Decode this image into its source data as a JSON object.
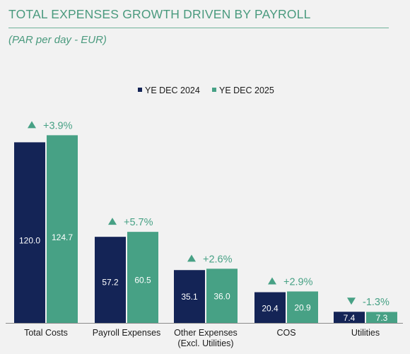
{
  "header": {
    "title": "TOTAL EXPENSES GROWTH DRIVEN BY PAYROLL",
    "subtitle": "(PAR per day - EUR)"
  },
  "colors": {
    "series_2024": "#142456",
    "series_2025": "#47a185",
    "growth_text": "#47a185",
    "axis": "#8c8c8c",
    "title": "#4a9a7e"
  },
  "chart_data": {
    "type": "bar",
    "categories": [
      "Total Costs",
      "Payroll Expenses",
      "Other Expenses\n(Excl. Utilities)",
      "COS",
      "Utilities"
    ],
    "series": [
      {
        "name": "YE DEC 2024",
        "values": [
          120.0,
          57.2,
          35.1,
          20.4,
          7.4
        ]
      },
      {
        "name": "YE DEC 2025",
        "values": [
          124.7,
          60.5,
          36.0,
          20.9,
          7.3
        ]
      }
    ],
    "growth": [
      "+3.9%",
      "+5.7%",
      "+2.6%",
      "+2.9%",
      "-1.3%"
    ],
    "growth_direction": [
      "up",
      "up",
      "up",
      "up",
      "down"
    ],
    "legend_position": "top-center",
    "ylim": [
      0,
      130
    ],
    "grid": false
  }
}
